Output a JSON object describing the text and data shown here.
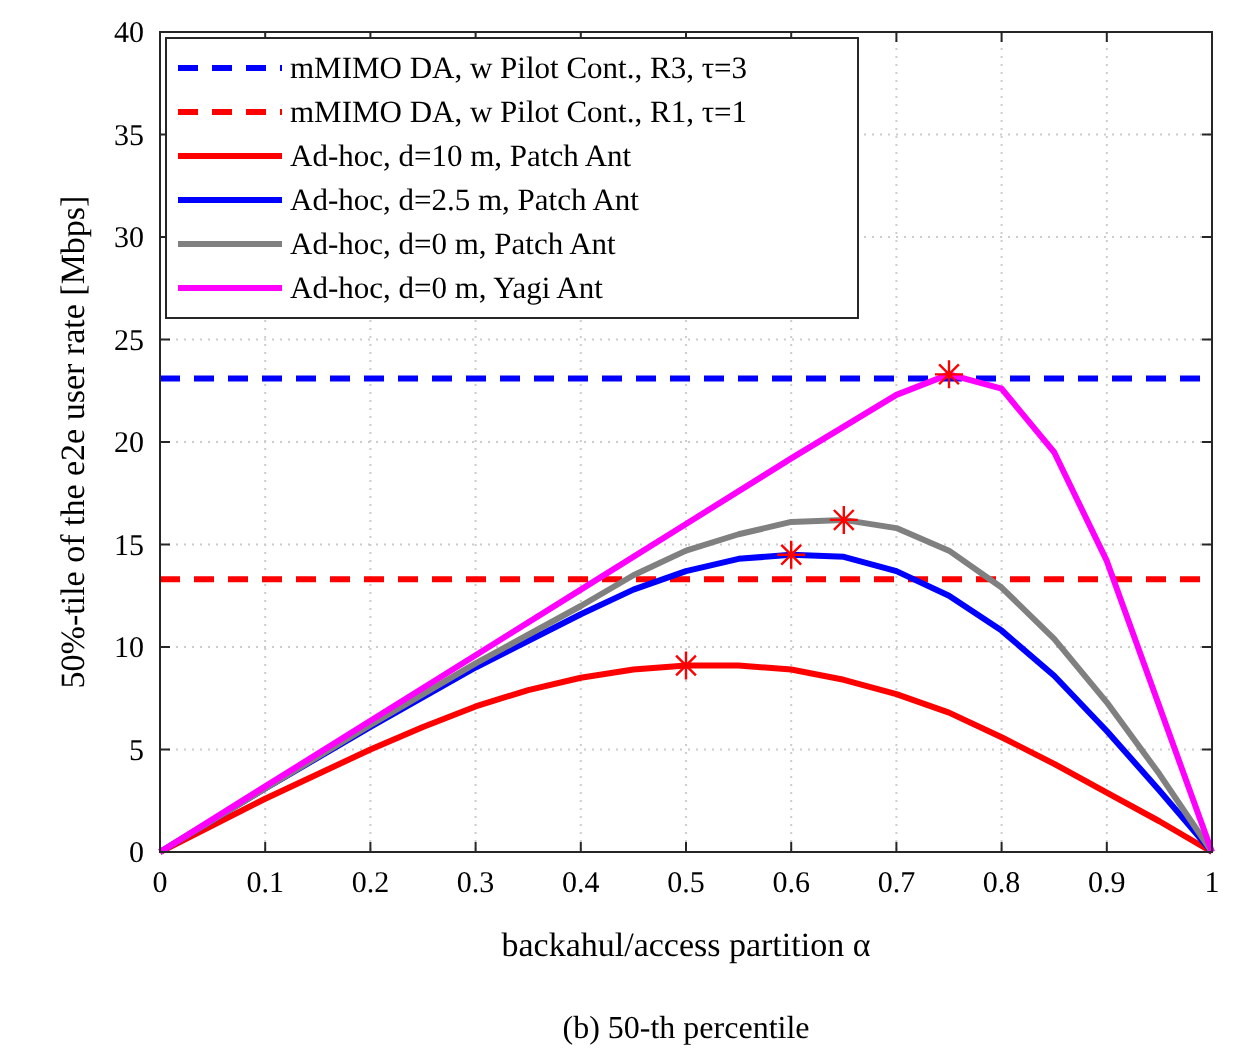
{
  "chart_data": {
    "type": "line",
    "title": "(b) 50-th percentile",
    "xlabel": "backahul/access partition α",
    "ylabel": "50%-tile of the e2e user rate [Mbps]",
    "xlim": [
      0,
      1
    ],
    "ylim": [
      0,
      40
    ],
    "xticks": [
      0,
      0.1,
      0.2,
      0.3,
      0.4,
      0.5,
      0.6,
      0.7,
      0.8,
      0.9,
      1
    ],
    "yticks": [
      0,
      5,
      10,
      15,
      20,
      25,
      30,
      35,
      40
    ],
    "grid": true,
    "legend": "top left",
    "series": [
      {
        "name": "mMIMO DA, w Pilot Cont., R3, τ=3",
        "color": "#0000ff",
        "line_style": "dashed",
        "x": [
          0,
          1
        ],
        "values": [
          23.1,
          23.1
        ]
      },
      {
        "name": "mMIMO DA, w Pilot Cont., R1, τ=1",
        "color": "#ff0000",
        "line_style": "dashed",
        "x": [
          0,
          1
        ],
        "values": [
          13.3,
          13.3
        ]
      },
      {
        "name": "Ad-hoc, d=10 m, Patch Ant",
        "color": "#ff0000",
        "line_style": "solid",
        "x": [
          0,
          0.1,
          0.2,
          0.25,
          0.3,
          0.35,
          0.4,
          0.45,
          0.5,
          0.55,
          0.6,
          0.65,
          0.7,
          0.75,
          0.8,
          0.85,
          0.9,
          0.95,
          1
        ],
        "values": [
          0,
          2.6,
          5.0,
          6.1,
          7.1,
          7.9,
          8.5,
          8.9,
          9.1,
          9.1,
          8.9,
          8.4,
          7.7,
          6.8,
          5.6,
          4.3,
          2.9,
          1.5,
          0
        ]
      },
      {
        "name": "Ad-hoc, d=2.5 m, Patch Ant",
        "color": "#0000ff",
        "line_style": "solid",
        "x": [
          0,
          0.1,
          0.2,
          0.3,
          0.4,
          0.45,
          0.5,
          0.55,
          0.6,
          0.65,
          0.7,
          0.75,
          0.8,
          0.85,
          0.9,
          0.95,
          1
        ],
        "values": [
          0,
          3.1,
          6.1,
          9.0,
          11.6,
          12.8,
          13.7,
          14.3,
          14.5,
          14.4,
          13.7,
          12.5,
          10.8,
          8.6,
          5.9,
          3.0,
          0
        ]
      },
      {
        "name": "Ad-hoc, d=0 m, Patch Ant",
        "color": "#808080",
        "line_style": "solid",
        "x": [
          0,
          0.1,
          0.2,
          0.3,
          0.4,
          0.45,
          0.5,
          0.55,
          0.6,
          0.65,
          0.7,
          0.75,
          0.8,
          0.85,
          0.9,
          0.95,
          1
        ],
        "values": [
          0,
          3.1,
          6.2,
          9.2,
          12.0,
          13.5,
          14.7,
          15.5,
          16.1,
          16.2,
          15.8,
          14.7,
          12.9,
          10.4,
          7.3,
          3.8,
          0
        ]
      },
      {
        "name": "Ad-hoc, d=0 m, Yagi Ant",
        "color": "#ff00ff",
        "line_style": "solid",
        "x": [
          0,
          0.1,
          0.2,
          0.3,
          0.4,
          0.5,
          0.6,
          0.7,
          0.75,
          0.8,
          0.85,
          0.9,
          1
        ],
        "values": [
          0,
          3.2,
          6.4,
          9.6,
          12.8,
          16.0,
          19.2,
          22.3,
          23.3,
          22.6,
          19.5,
          14.2,
          0
        ]
      },
      {
        "type": "scatter",
        "marker": "cross",
        "color": "#ff0000",
        "x": [
          0.5,
          0.6,
          0.65,
          0.75
        ],
        "values": [
          9.1,
          14.5,
          16.2,
          23.3
        ]
      }
    ]
  }
}
